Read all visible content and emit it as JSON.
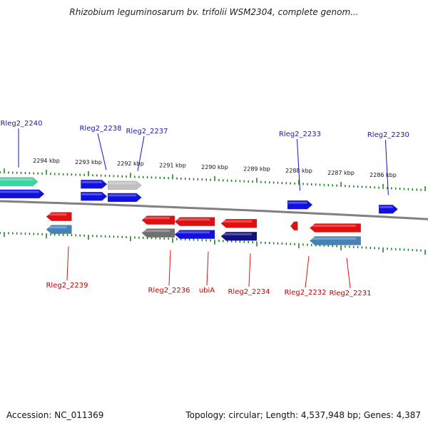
{
  "header": {
    "title": "Rhizobium leguminosarum bv. trifolii WSM2304, complete genom..."
  },
  "footer": {
    "accession": "Accession: NC_011369",
    "topology": "Topology: circular; Length: 4,537,948 bp; Genes: 4,387"
  },
  "colors": {
    "forward": "#1010e0",
    "reverse": "#e01010",
    "dark_blue": "#101080",
    "steel_blue": "#4682b4",
    "gray": "#707070",
    "light_gray": "#c0c0c0",
    "teal": "#3ad6a0",
    "tick_green": "#1a7a1a",
    "track": "#808080"
  },
  "scale": {
    "unit": "kbp",
    "labels": [
      {
        "text": "2294 kbp",
        "value": 2294
      },
      {
        "text": "2293 kbp",
        "value": 2293
      },
      {
        "text": "2292 kbp",
        "value": 2292
      },
      {
        "text": "2291 kbp",
        "value": 2291
      },
      {
        "text": "2290 kbp",
        "value": 2290
      },
      {
        "text": "2289 kbp",
        "value": 2289
      },
      {
        "text": "2288 kbp",
        "value": 2288
      },
      {
        "text": "2287 kbp",
        "value": 2287
      },
      {
        "text": "2286 kbp",
        "value": 2286
      }
    ]
  },
  "genes_top": [
    {
      "label": "Rleg2_2240",
      "color": "teal",
      "row": 1,
      "start": 2295.2,
      "end": 2294.2,
      "direction": "cw"
    },
    {
      "label": "",
      "color": "forward",
      "row": 2,
      "start": 2295.2,
      "end": 2294.05,
      "direction": "cw"
    },
    {
      "label": "Rleg2_2238",
      "color": "forward",
      "row": 1,
      "start": 2293.18,
      "end": 2292.56,
      "direction": "cw"
    },
    {
      "label": "",
      "color": "forward",
      "row": 2,
      "start": 2293.18,
      "end": 2292.56,
      "direction": "cw"
    },
    {
      "label": "Rleg2_2237",
      "color": "light_gray",
      "row": 1,
      "start": 2292.54,
      "end": 2291.74,
      "direction": "cw"
    },
    {
      "label": "",
      "color": "forward",
      "row": 2,
      "start": 2292.54,
      "end": 2291.74,
      "direction": "cw"
    },
    {
      "label": "Rleg2_2233",
      "color": "forward",
      "row": 2,
      "start": 2288.27,
      "end": 2287.68,
      "direction": "cw"
    },
    {
      "label": "Rleg2_2230",
      "color": "forward",
      "row": 2,
      "start": 2286.1,
      "end": 2285.65,
      "direction": "cw"
    }
  ],
  "genes_bottom": [
    {
      "label": "Rleg2_2239",
      "color": "reverse",
      "row": 1,
      "start": 2294.0,
      "end": 2293.4,
      "direction": "ccw"
    },
    {
      "label": "",
      "color": "steel_blue",
      "row": 2,
      "start": 2294.0,
      "end": 2293.4,
      "direction": "ccw"
    },
    {
      "label": "Rleg2_2236",
      "color": "reverse",
      "row": 1,
      "start": 2291.73,
      "end": 2290.95,
      "direction": "ccw"
    },
    {
      "label": "",
      "color": "gray",
      "row": 2,
      "start": 2291.73,
      "end": 2290.95,
      "direction": "ccw"
    },
    {
      "label": "ubiA",
      "color": "reverse",
      "row": 1,
      "start": 2290.95,
      "end": 2290.0,
      "direction": "ccw"
    },
    {
      "label": "",
      "color": "forward",
      "row": 2,
      "start": 2290.95,
      "end": 2290.0,
      "direction": "ccw"
    },
    {
      "label": "Rleg2_2234",
      "color": "reverse",
      "row": 1,
      "start": 2289.85,
      "end": 2289.0,
      "direction": "ccw"
    },
    {
      "label": "",
      "color": "dark_blue",
      "row": 2,
      "start": 2289.85,
      "end": 2289.0,
      "direction": "ccw"
    },
    {
      "label": "Rleg2_2232",
      "color": "reverse",
      "row": 1,
      "start": 2288.2,
      "end": 2288.03,
      "direction": "ccw"
    },
    {
      "label": "Rleg2_2231",
      "color": "reverse",
      "row": 1,
      "start": 2287.74,
      "end": 2286.53,
      "direction": "ccw"
    },
    {
      "label": "",
      "color": "steel_blue",
      "row": 2,
      "start": 2287.74,
      "end": 2286.53,
      "direction": "ccw"
    }
  ]
}
